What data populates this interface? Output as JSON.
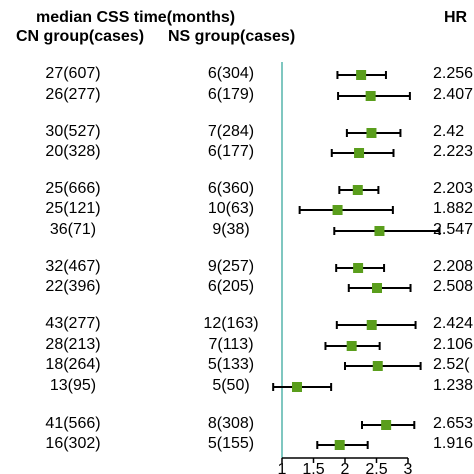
{
  "header": {
    "median_title": "median CSS time(months)",
    "cn_title": "CN group(cases)",
    "ns_title": "NS group(cases)",
    "hr_title": "HR"
  },
  "rows": [
    {
      "cn": "27(607)",
      "ns": "6(304)",
      "hr_text": "2.256"
    },
    {
      "cn": "26(277)",
      "ns": "6(179)",
      "hr_text": "2.407"
    },
    {
      "cn": "30(527)",
      "ns": "7(284)",
      "hr_text": "2.42"
    },
    {
      "cn": "20(328)",
      "ns": "6(177)",
      "hr_text": "2.223"
    },
    {
      "cn": "25(666)",
      "ns": "6(360)",
      "hr_text": "2.203"
    },
    {
      "cn": "25(121)",
      "ns": "10(63)",
      "hr_text": "1.882"
    },
    {
      "cn": "36(71)",
      "ns": "9(38)",
      "hr_text": "2.547"
    },
    {
      "cn": "32(467)",
      "ns": "9(257)",
      "hr_text": "2.208"
    },
    {
      "cn": "22(396)",
      "ns": "6(205)",
      "hr_text": "2.508"
    },
    {
      "cn": "43(277)",
      "ns": "12(163)",
      "hr_text": "2.424"
    },
    {
      "cn": "28(213)",
      "ns": "7(113)",
      "hr_text": "2.106"
    },
    {
      "cn": "18(264)",
      "ns": "5(133)",
      "hr_text": "2.52("
    },
    {
      "cn": "13(95)",
      "ns": "5(50)",
      "hr_text": "1.238"
    },
    {
      "cn": "41(566)",
      "ns": "8(308)",
      "hr_text": "2.653"
    },
    {
      "cn": "16(302)",
      "ns": "5(155)",
      "hr_text": "1.916"
    }
  ],
  "chart_data": {
    "type": "forest",
    "reference_line": 1,
    "xlim": [
      1,
      3
    ],
    "x_ticks": [
      "1",
      "1.5",
      "2",
      "2.5",
      "3"
    ],
    "hr": [
      2.256,
      2.407,
      2.42,
      2.223,
      2.203,
      1.882,
      2.547,
      2.208,
      2.508,
      2.424,
      2.106,
      2.52,
      1.238,
      2.653,
      1.916
    ],
    "ci_low": [
      1.88,
      1.89,
      2.03,
      1.79,
      1.91,
      1.28,
      1.83,
      1.86,
      2.06,
      1.87,
      1.69,
      2.0,
      0.86,
      2.27,
      1.56
    ],
    "ci_high": [
      2.65,
      3.03,
      2.88,
      2.77,
      2.53,
      2.76,
      3.5,
      2.62,
      3.04,
      3.12,
      2.55,
      3.2,
      1.78,
      3.1,
      2.36
    ],
    "colors": {
      "marker": "#5a9e1c",
      "reference_line": "#7fc7c0",
      "axis": "#000000"
    }
  }
}
